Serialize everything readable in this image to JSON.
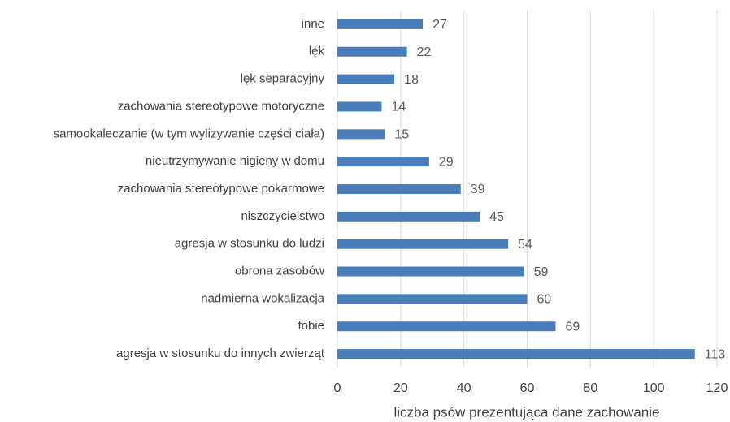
{
  "chart_data": {
    "type": "hbar",
    "categories": [
      "inne",
      "lęk",
      "lęk separacyjny",
      "zachowania stereotypowe motoryczne",
      "samookaleczanie (w tym wylizywanie części ciała)",
      "nieutrzymywanie higieny w domu",
      "zachowania stereotypowe pokarmowe",
      "niszczycielstwo",
      "agresja w stosunku do ludzi",
      "obrona zasobów",
      "nadmierna wokalizacja",
      "fobie",
      "agresja w stosunku do innych zwierząt"
    ],
    "values": [
      27,
      22,
      18,
      14,
      15,
      29,
      39,
      45,
      54,
      59,
      60,
      69,
      113
    ],
    "color": "#4a7ebb",
    "xlim": [
      0,
      120
    ],
    "xticks": [
      0,
      20,
      40,
      60,
      80,
      100,
      120
    ],
    "grid": true,
    "xlabel": "liczba psów prezentująca dane zachowanie"
  }
}
